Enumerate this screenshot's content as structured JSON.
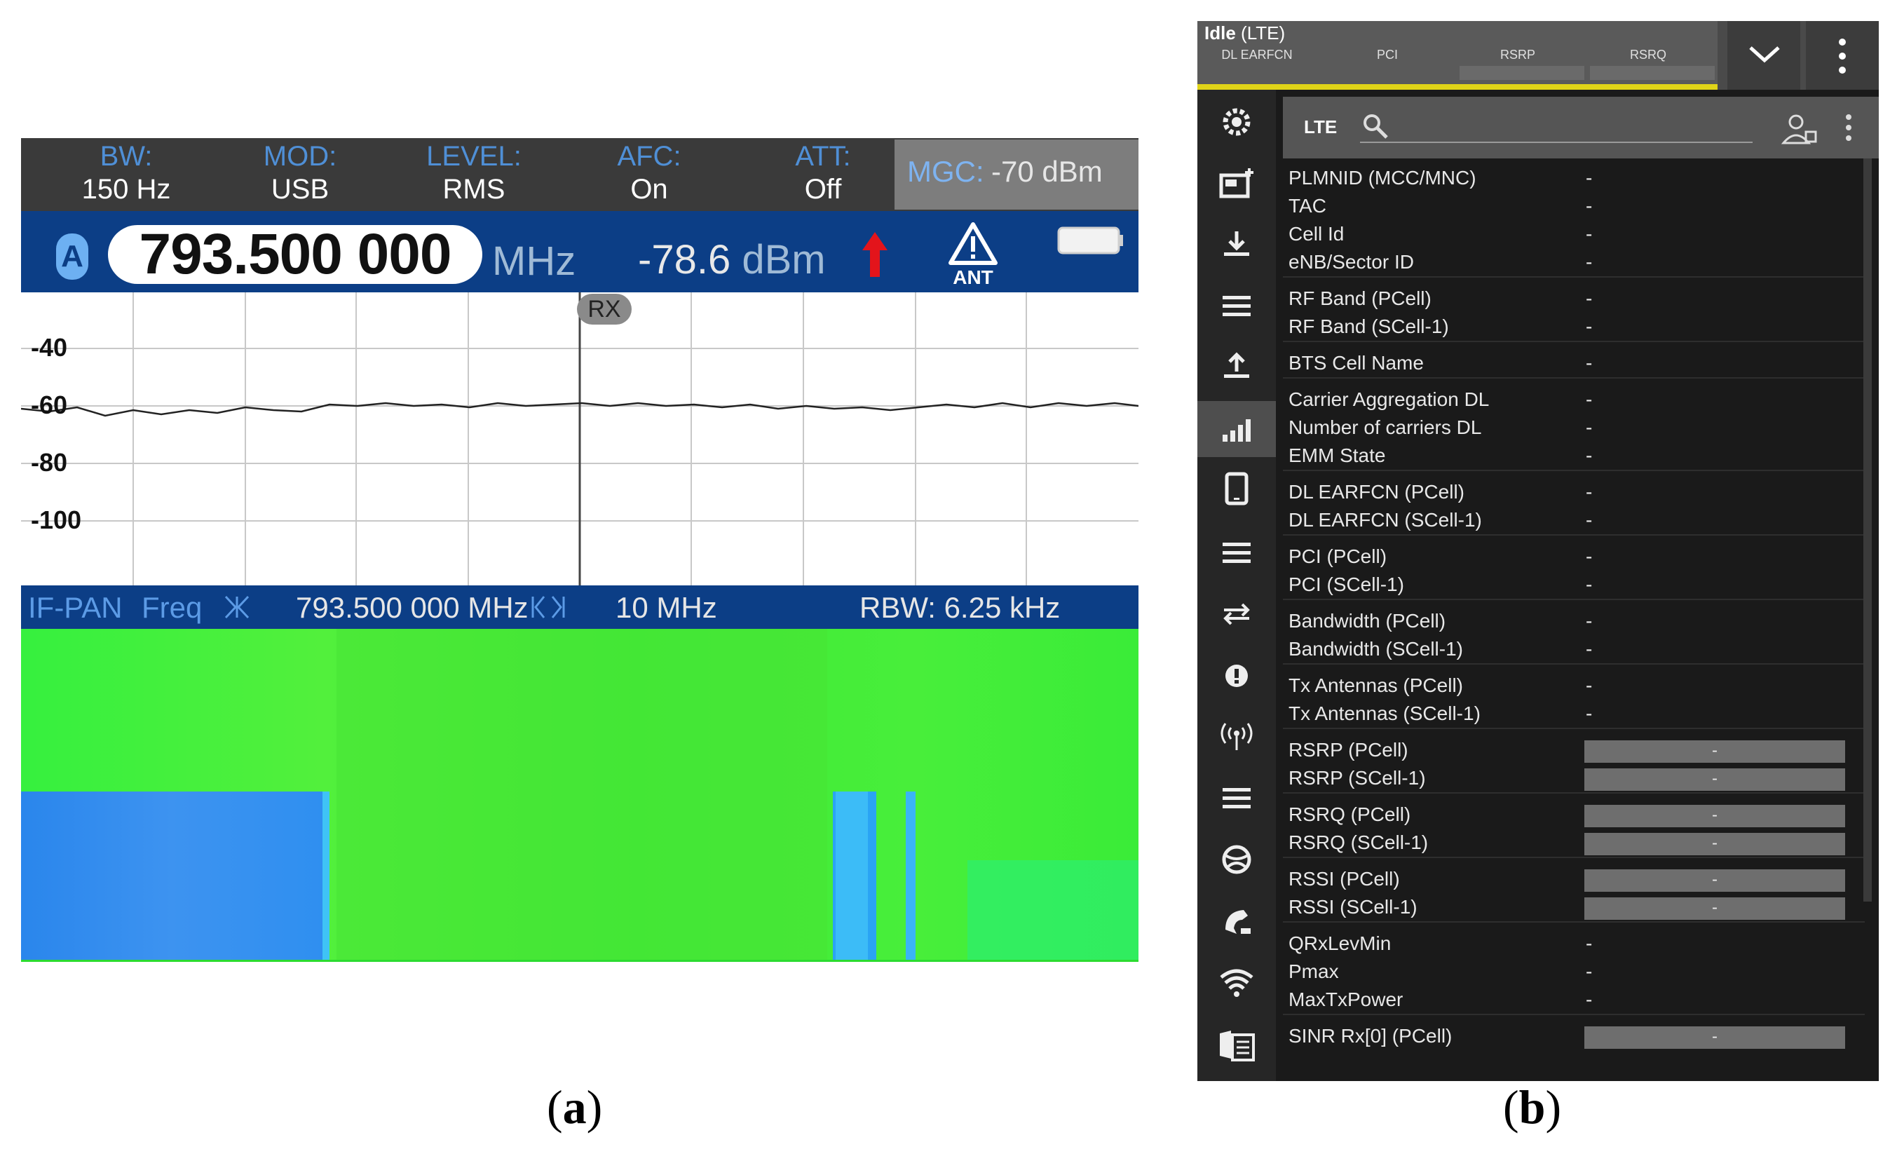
{
  "panel_a": {
    "status": [
      {
        "label": "BW:",
        "value": "150 Hz"
      },
      {
        "label": "MOD:",
        "value": "USB"
      },
      {
        "label": "LEVEL:",
        "value": "RMS"
      },
      {
        "label": "AFC:",
        "value": "On"
      },
      {
        "label": "ATT:",
        "value": "Off"
      }
    ],
    "mgc_label": "MGC:",
    "mgc_value": "-70 dBm",
    "channel": "A",
    "frequency": "793.500 000",
    "frequency_unit": "MHz",
    "level_value": "-78.6",
    "level_unit": "dBm",
    "ant_label": "ANT",
    "rx_marker": "RX",
    "y_ticks": [
      "-40",
      "-60",
      "-80",
      "-100"
    ],
    "ifpan": {
      "mode": "IF-PAN",
      "freq_label": "Freq",
      "center_freq": "793.500 000 MHz",
      "span": "10 MHz",
      "rbw": "RBW: 6.25 kHz"
    },
    "colors": {
      "header": "#0c3e86",
      "status_bg": "#3a3a3a",
      "accent_red": "#e3141b",
      "waterfall_green": "#2bf03a",
      "waterfall_blue": "#2f8ff0"
    }
  },
  "panel_b": {
    "title_bold": "Idle",
    "title_rest": "(LTE)",
    "columns": [
      "DL EARFCN",
      "PCI",
      "RSRP",
      "RSRQ"
    ],
    "search_label": "LTE",
    "rows": [
      {
        "label": "PLMNID (MCC/MNC)",
        "value": "-"
      },
      {
        "label": "TAC",
        "value": "-"
      },
      {
        "label": "Cell Id",
        "value": "-"
      },
      {
        "label": "eNB/Sector ID",
        "value": "-"
      },
      {
        "label": "RF Band (PCell)",
        "value": "-"
      },
      {
        "label": "RF Band (SCell-1)",
        "value": "-"
      },
      {
        "label": "BTS Cell Name",
        "value": "-"
      },
      {
        "label": "Carrier Aggregation DL",
        "value": "-"
      },
      {
        "label": "Number of carriers DL",
        "value": "-"
      },
      {
        "label": "EMM State",
        "value": "-"
      },
      {
        "label": "DL EARFCN (PCell)",
        "value": "-"
      },
      {
        "label": "DL EARFCN (SCell-1)",
        "value": "-"
      },
      {
        "label": "PCI (PCell)",
        "value": "-"
      },
      {
        "label": "PCI (SCell-1)",
        "value": "-"
      },
      {
        "label": "Bandwidth (PCell)",
        "value": "-"
      },
      {
        "label": "Bandwidth (SCell-1)",
        "value": "-"
      },
      {
        "label": "Tx Antennas (PCell)",
        "value": "-"
      },
      {
        "label": "Tx Antennas (SCell-1)",
        "value": "-"
      },
      {
        "label": "RSRP (PCell)",
        "value": "-"
      },
      {
        "label": "RSRP (SCell-1)",
        "value": "-"
      },
      {
        "label": "RSRQ (PCell)",
        "value": "-"
      },
      {
        "label": "RSRQ (SCell-1)",
        "value": "-"
      },
      {
        "label": "RSSI (PCell)",
        "value": "-"
      },
      {
        "label": "RSSI (SCell-1)",
        "value": "-"
      },
      {
        "label": "QRxLevMin",
        "value": "-"
      },
      {
        "label": "Pmax",
        "value": "-"
      },
      {
        "label": "MaxTxPower",
        "value": "-"
      },
      {
        "label": "SINR Rx[0] (PCell)",
        "value": "-"
      }
    ],
    "sidebar_icons": [
      "settings-icon",
      "add-screen-icon",
      "download-icon",
      "menu-icon",
      "upload-icon",
      "signal-bars-icon",
      "tablet-icon",
      "menu-icon",
      "swap-arrows-icon",
      "alert-icon",
      "antenna-icon",
      "menu-icon",
      "globe-icon",
      "phone-icon",
      "wifi-icon",
      "document-stack-icon"
    ]
  },
  "captions": {
    "a": "a",
    "b": "b"
  }
}
